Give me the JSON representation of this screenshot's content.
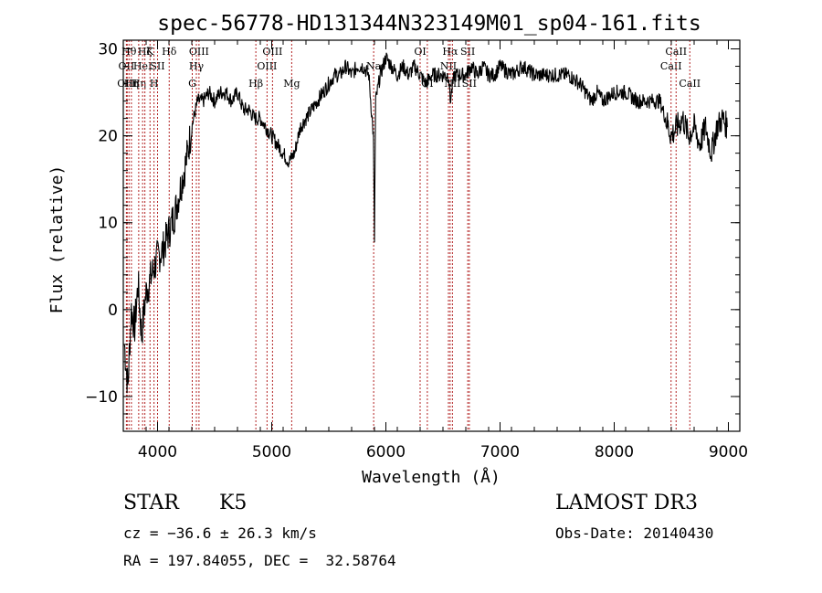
{
  "chart_data": {
    "type": "line",
    "title": "spec-56778-HD131344N323149M01_sp04-161.fits",
    "xlabel": "Wavelength (Å)",
    "ylabel": "Flux (relative)",
    "xlim": [
      3700,
      9100
    ],
    "ylim": [
      -14,
      31
    ],
    "xticks": [
      {
        "value": 4000,
        "label": "4000"
      },
      {
        "value": 5000,
        "label": "5000"
      },
      {
        "value": 6000,
        "label": "6000"
      },
      {
        "value": 7000,
        "label": "7000"
      },
      {
        "value": 8000,
        "label": "8000"
      },
      {
        "value": 9000,
        "label": "9000"
      }
    ],
    "yticks": [
      {
        "value": -10,
        "label": "−10"
      },
      {
        "value": 0,
        "label": "0"
      },
      {
        "value": 10,
        "label": "10"
      },
      {
        "value": 20,
        "label": "20"
      },
      {
        "value": 30,
        "label": "30"
      }
    ],
    "series": [
      {
        "color": "#000000",
        "x": [
          3710,
          3740,
          3770,
          3800,
          3830,
          3860,
          3900,
          3950,
          4000,
          4050,
          4100,
          4150,
          4200,
          4250,
          4300,
          4350,
          4400,
          4450,
          4500,
          4550,
          4600,
          4650,
          4700,
          4750,
          4800,
          4850,
          4900,
          4950,
          5000,
          5050,
          5100,
          5150,
          5200,
          5250,
          5300,
          5350,
          5400,
          5450,
          5500,
          5550,
          5600,
          5650,
          5700,
          5750,
          5800,
          5850,
          5890,
          5900,
          5910,
          5950,
          6000,
          6050,
          6100,
          6150,
          6200,
          6250,
          6300,
          6350,
          6400,
          6450,
          6500,
          6550,
          6563,
          6600,
          6650,
          6700,
          6750,
          6800,
          6850,
          6900,
          6950,
          7000,
          7100,
          7200,
          7300,
          7400,
          7500,
          7600,
          7700,
          7800,
          7850,
          7900,
          8000,
          8100,
          8200,
          8300,
          8400,
          8450,
          8500,
          8550,
          8600,
          8650,
          8700,
          8750,
          8800,
          8850,
          8900,
          8950,
          8990
        ],
        "y": [
          -4,
          -9,
          0,
          -2,
          3,
          -3,
          2,
          4,
          6,
          7,
          9,
          11,
          14,
          17,
          21,
          24,
          24,
          25,
          24,
          25,
          25,
          24,
          25,
          23,
          23,
          22,
          22,
          21,
          20,
          19,
          18,
          17,
          18,
          21,
          22,
          23,
          24,
          25,
          26,
          27,
          27,
          28,
          27,
          28,
          28,
          27,
          20,
          8,
          24,
          27,
          29,
          28,
          27,
          28,
          27,
          28,
          27,
          26,
          27,
          27,
          27,
          27,
          24,
          27,
          27,
          27,
          28,
          27,
          28,
          27,
          27,
          28,
          27,
          28,
          27,
          27,
          27,
          27,
          26,
          24,
          25,
          24,
          25,
          25,
          24,
          24,
          24,
          22,
          20,
          21,
          22,
          20,
          21,
          19,
          21,
          18,
          21,
          22,
          21
        ]
      }
    ],
    "line_markers": [
      {
        "x": 3727,
        "label": "OII",
        "row": 1
      },
      {
        "x": 3734,
        "label": "OIII",
        "row": 2
      },
      {
        "x": 3750,
        "label": "Hθ",
        "row": 0
      },
      {
        "x": 3771,
        "label": "Hη",
        "row": 2
      },
      {
        "x": 3835,
        "label": "Hη",
        "row": 2
      },
      {
        "x": 3869,
        "label": "HeI",
        "row": 1
      },
      {
        "x": 3889,
        "label": "Hζ",
        "row": 0
      },
      {
        "x": 3934,
        "label": "K",
        "row": 0
      },
      {
        "x": 3969,
        "label": "H",
        "row": 2
      },
      {
        "x": 4000,
        "label": "SII",
        "row": 1
      },
      {
        "x": 4102,
        "label": "Hδ",
        "row": 0
      },
      {
        "x": 4304,
        "label": "G",
        "row": 2
      },
      {
        "x": 4340,
        "label": "Hγ",
        "row": 1
      },
      {
        "x": 4363,
        "label": "OIII",
        "row": 0
      },
      {
        "x": 4861,
        "label": "Hβ",
        "row": 2
      },
      {
        "x": 4959,
        "label": "OIII",
        "row": 1
      },
      {
        "x": 5007,
        "label": "OIII",
        "row": 0
      },
      {
        "x": 5175,
        "label": "Mg",
        "row": 2
      },
      {
        "x": 5893,
        "label": "Na",
        "row": 1
      },
      {
        "x": 6300,
        "label": "OI",
        "row": 0
      },
      {
        "x": 6363,
        "label": "OI",
        "row": 2
      },
      {
        "x": 6548,
        "label": "NII",
        "row": 1
      },
      {
        "x": 6563,
        "label": "Hα",
        "row": 0
      },
      {
        "x": 6583,
        "label": "NII",
        "row": 2
      },
      {
        "x": 6717,
        "label": "SII",
        "row": 0
      },
      {
        "x": 6731,
        "label": "SII",
        "row": 2
      },
      {
        "x": 8498,
        "label": "CaII",
        "row": 1
      },
      {
        "x": 8542,
        "label": "CaII",
        "row": 0
      },
      {
        "x": 8662,
        "label": "CaII",
        "row": 2
      }
    ]
  },
  "info": {
    "object_class": "STAR",
    "subclass": "K5",
    "survey": "LAMOST DR3",
    "redshift": "cz = −36.6 ± 26.3 km/s",
    "obs_date": "Obs-Date: 20140430",
    "coords": "RA = 197.84055, DEC =  32.58764"
  }
}
